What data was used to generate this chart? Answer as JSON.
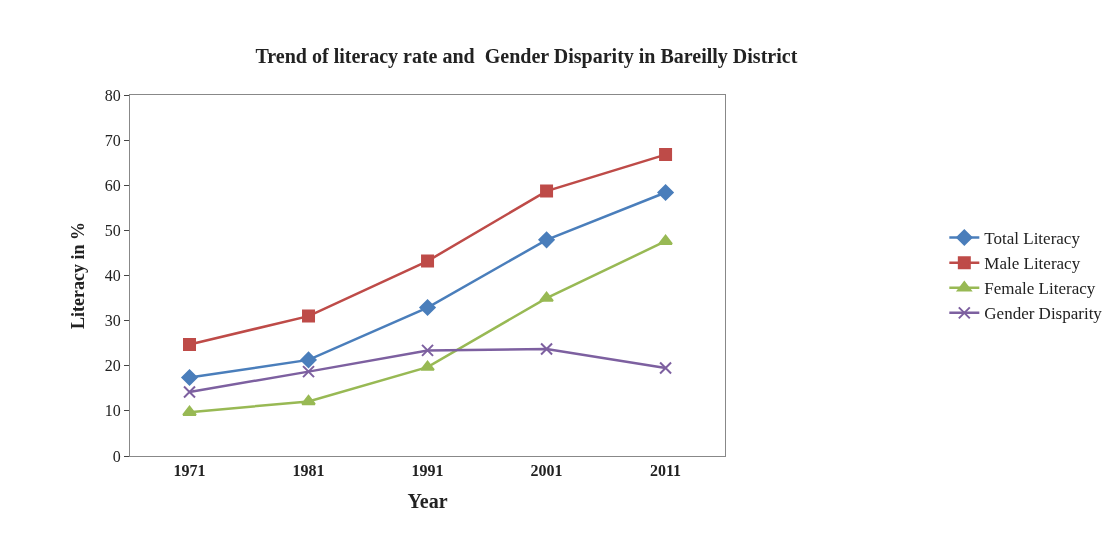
{
  "chart_data": {
    "type": "line",
    "title": "Trend of literacy rate and  Gender Disparity in Bareilly District",
    "xlabel": "Year",
    "ylabel": "Literacy in %",
    "categories": [
      "1971",
      "1981",
      "1991",
      "2001",
      "2011"
    ],
    "series": [
      {
        "name": "Total Literacy",
        "color": "#4a7ebb",
        "marker": "diamond",
        "values": [
          17.4,
          21.3,
          32.9,
          47.9,
          58.4
        ]
      },
      {
        "name": "Male Literacy",
        "color": "#be4b48",
        "marker": "square",
        "values": [
          24.7,
          31,
          43.2,
          58.7,
          66.8
        ]
      },
      {
        "name": "Female Literacy",
        "color": "#98b954",
        "marker": "triangle",
        "values": [
          9.7,
          12.1,
          19.7,
          35,
          47.6
        ]
      },
      {
        "name": "Gender Disparity",
        "color": "#7d60a0",
        "marker": "cross",
        "values": [
          14.2,
          18.7,
          23.4,
          23.7,
          19.5
        ]
      }
    ],
    "ylim": [
      0,
      80
    ],
    "yticks": [
      0,
      10,
      20,
      30,
      40,
      50,
      60,
      70,
      80
    ],
    "legend": "right",
    "line_style": "solid"
  }
}
